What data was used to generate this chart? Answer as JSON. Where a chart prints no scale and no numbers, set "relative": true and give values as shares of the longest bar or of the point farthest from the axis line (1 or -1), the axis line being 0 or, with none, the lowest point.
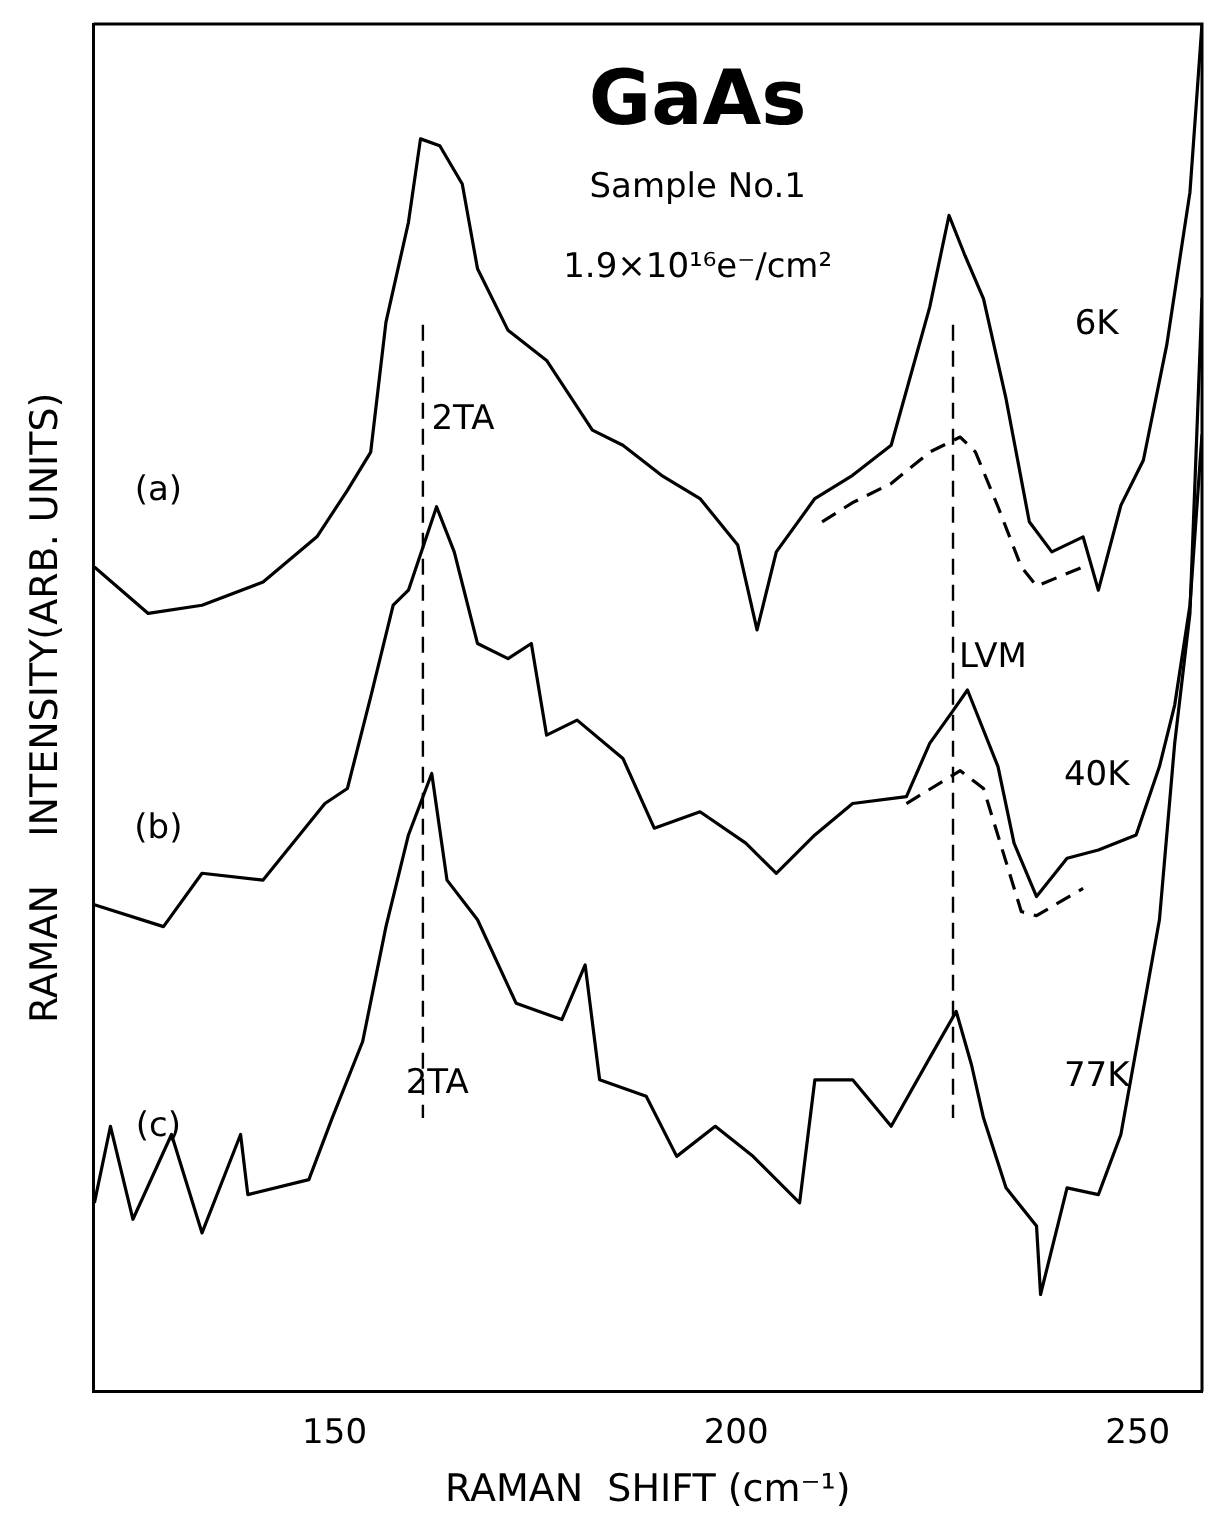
{
  "chart_data": {
    "type": "line",
    "title": "GaAs",
    "subtitle": "Sample No.1",
    "xlabel": "RAMAN  SHIFT (cm⁻¹)",
    "ylabel": "RAMAN    INTENSITY(ARB. UNITS)",
    "relative": true,
    "xlim": [
      120,
      258
    ],
    "xticks": [
      150,
      200,
      250
    ],
    "grid": false,
    "legend": false,
    "marker": "none",
    "series": [
      {
        "name": "(a)",
        "color": "#000000",
        "line_style": "solid",
        "x": [
          120.1,
          126.8,
          133.5,
          141.1,
          147.8,
          151.6,
          154.5,
          156.4,
          159.2,
          160.7,
          163.1,
          165.9,
          167.8,
          171.6,
          176.4,
          182.1,
          185.9,
          190.7,
          195.5,
          200.2,
          202.6,
          205.0,
          209.8,
          214.5,
          219.3,
          224.1,
          226.5,
          228.4,
          230.8,
          233.6,
          236.5,
          239.3,
          243.2,
          245.1,
          247.9,
          250.7,
          253.6,
          256.5,
          258
        ],
        "values": [
          0.603,
          0.569,
          0.575,
          0.592,
          0.625,
          0.659,
          0.687,
          0.782,
          0.855,
          0.916,
          0.911,
          0.883,
          0.821,
          0.776,
          0.754,
          0.703,
          0.692,
          0.67,
          0.653,
          0.619,
          0.557,
          0.614,
          0.653,
          0.67,
          0.692,
          0.793,
          0.86,
          0.832,
          0.799,
          0.726,
          0.636,
          0.614,
          0.625,
          0.586,
          0.648,
          0.681,
          0.765,
          0.877,
          1.0
        ]
      },
      {
        "color": "#000000",
        "line_style": "dashed",
        "x": [
          210.7,
          214.5,
          219.3,
          224.1,
          227.9,
          229.8,
          232.6,
          235.5,
          237.4,
          243.2
        ],
        "values": [
          0.636,
          0.65,
          0.664,
          0.687,
          0.698,
          0.687,
          0.647,
          0.603,
          0.589,
          0.603
        ]
      },
      {
        "name": "(b)",
        "color": "#000000",
        "line_style": "solid",
        "x": [
          120.1,
          128.7,
          133.5,
          141.1,
          148.8,
          151.6,
          154.5,
          157.3,
          159.2,
          162.7,
          164.9,
          167.8,
          171.6,
          174.5,
          176.4,
          180.2,
          185.9,
          189.8,
          195.5,
          201.2,
          205.0,
          209.8,
          214.5,
          221.2,
          224.1,
          226.9,
          228.8,
          232.6,
          234.6,
          237.4,
          241.2,
          245.1,
          249.8,
          252.7,
          254.6,
          256.5,
          258
        ],
        "values": [
          0.356,
          0.34,
          0.379,
          0.374,
          0.43,
          0.441,
          0.508,
          0.575,
          0.586,
          0.647,
          0.614,
          0.547,
          0.536,
          0.547,
          0.48,
          0.491,
          0.463,
          0.412,
          0.424,
          0.401,
          0.379,
          0.407,
          0.43,
          0.435,
          0.474,
          0.497,
          0.513,
          0.457,
          0.401,
          0.362,
          0.39,
          0.396,
          0.407,
          0.457,
          0.502,
          0.575,
          0.7
        ]
      },
      {
        "color": "#000000",
        "line_style": "dashed",
        "x": [
          221.2,
          227.9,
          230.8,
          235.5,
          237.4,
          243.2
        ],
        "values": [
          0.43,
          0.454,
          0.441,
          0.351,
          0.348,
          0.368
        ]
      },
      {
        "name": "(c)",
        "color": "#000000",
        "line_style": "solid",
        "x": [
          120.1,
          122.1,
          124.9,
          129.7,
          133.5,
          138.3,
          139.2,
          146.8,
          149.7,
          153.5,
          156.4,
          159.2,
          162.1,
          164.0,
          167.8,
          172.6,
          178.3,
          181.2,
          183.0,
          188.8,
          192.6,
          197.4,
          202.1,
          207.9,
          209.8,
          214.5,
          219.3,
          224.1,
          227.4,
          229.3,
          230.8,
          233.6,
          237.4,
          237.9,
          241.2,
          245.1,
          247.9,
          249.8,
          252.7,
          254.6,
          256.5,
          258
        ],
        "values": [
          0.138,
          0.194,
          0.126,
          0.188,
          0.116,
          0.188,
          0.144,
          0.155,
          0.2,
          0.256,
          0.34,
          0.407,
          0.452,
          0.374,
          0.345,
          0.284,
          0.272,
          0.312,
          0.228,
          0.216,
          0.172,
          0.194,
          0.172,
          0.138,
          0.228,
          0.228,
          0.194,
          0.244,
          0.278,
          0.239,
          0.2,
          0.149,
          0.121,
          0.071,
          0.149,
          0.144,
          0.188,
          0.25,
          0.345,
          0.474,
          0.569,
          0.8
        ]
      }
    ],
    "ref_lines": [
      {
        "axis": "x",
        "value": 161,
        "label": "2TA",
        "line_style": "dashed",
        "color": "#000000"
      },
      {
        "axis": "x",
        "value": 227,
        "label": "LVM",
        "line_style": "dashed",
        "color": "#000000"
      }
    ],
    "annotations": [
      "1.9×10¹⁶e⁻/cm²",
      "6K",
      "40K",
      "77K",
      "2TA"
    ]
  }
}
